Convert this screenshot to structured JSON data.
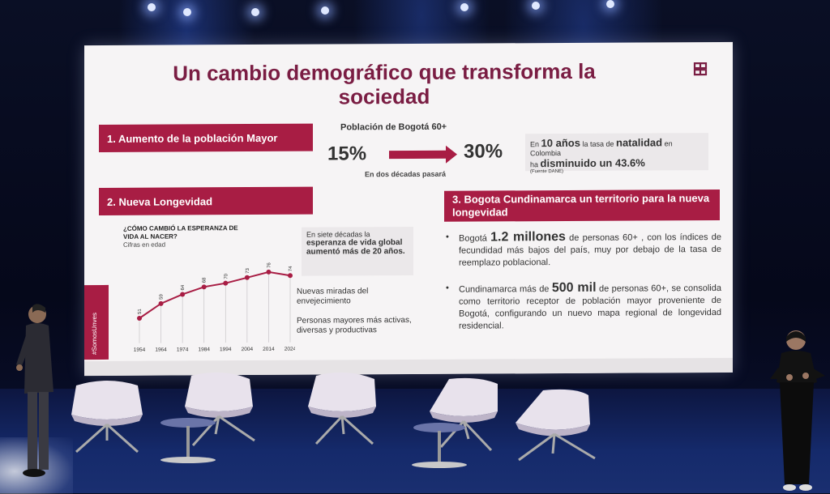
{
  "slide": {
    "title": "Un cambio demográfico que transforma la sociedad",
    "section1": "1. Aumento de la población Mayor",
    "section2": "2. Nueva Longevidad",
    "section3": "3. Bogota Cundinamarca un territorio para la nueva longevidad",
    "population": {
      "title": "Población de Bogotá 60+",
      "from": "15%",
      "to": "30%",
      "note": "En dos décadas pasará"
    },
    "natality": {
      "prefix": "En",
      "big1": "10 años",
      "mid": "la tasa de",
      "big2": "natalidad",
      "suffix": "en Colombia",
      "line2a": "ha",
      "line2b": "disminuido un 43.6%",
      "source": "(Fuente DANE)"
    },
    "chart_title": "¿CÓMO CAMBIÓ LA ESPERANZA DE VIDA AL NACER?",
    "chart_sub": "Cifras en edad",
    "life_box": {
      "line1": "En siete décadas la",
      "bold": "esperanza de vida global aumentó más de 20 años."
    },
    "bullets_left": [
      "Nuevas miradas del envejecimiento",
      "Personas mayores más activas, diversas y productivas"
    ],
    "bullet_right_1": {
      "pre": "Bogotá",
      "highlight": "1.2 millones",
      "post": "de personas 60+ , con los índices de fecundidad más bajos del país, muy por debajo de la tasa de reemplazo poblacional."
    },
    "bullet_right_2": {
      "pre": "Cundinamarca más de",
      "highlight": "500 mil",
      "post": "de personas 60+, se consolida como territorio receptor de población mayor proveniente de Bogotá, configurando un nuevo mapa regional de longevidad residencial."
    },
    "vertical_tag": "#SomosUnves"
  },
  "chart_data": {
    "type": "line",
    "title": "¿CÓMO CAMBIÓ LA ESPERANZA DE VIDA AL NACER?",
    "ylabel": "Cifras en edad",
    "x": [
      "1954",
      "1964",
      "1974",
      "1984",
      "1994",
      "2004",
      "2014",
      "2024"
    ],
    "values": [
      51,
      59,
      64,
      68,
      70,
      73,
      76,
      74
    ],
    "ylim": [
      40,
      80
    ],
    "color": "#a81d44"
  },
  "colors": {
    "accent": "#a81d44",
    "title": "#7a1d43"
  }
}
